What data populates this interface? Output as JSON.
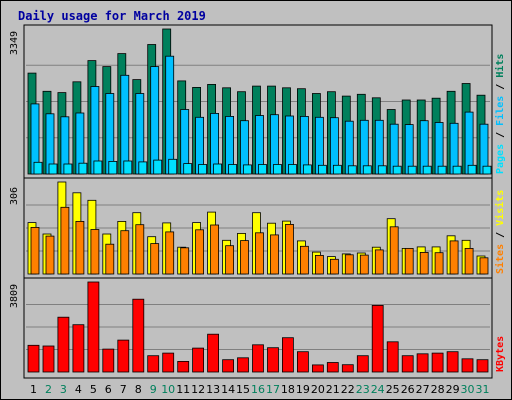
{
  "colors": {
    "hits": "#00805c",
    "files": "#00c0ff",
    "pages": "#00e0ff",
    "visits": "#ffff00",
    "sites": "#ff8000",
    "kbytes": "#ff0000",
    "weekday": "#000000",
    "weekend": "#00805c",
    "title": "#0000a0"
  },
  "chart_data": {
    "title": "Daily usage for March 2019",
    "type": "bar",
    "days": [
      "1",
      "2",
      "3",
      "4",
      "5",
      "6",
      "7",
      "8",
      "9",
      "10",
      "11",
      "12",
      "13",
      "14",
      "15",
      "16",
      "17",
      "18",
      "19",
      "20",
      "21",
      "22",
      "23",
      "24",
      "25",
      "26",
      "27",
      "28",
      "29",
      "30",
      "31"
    ],
    "weekend_days": [
      "2",
      "3",
      "9",
      "10",
      "16",
      "17",
      "23",
      "24",
      "30",
      "31"
    ],
    "panels": [
      {
        "name": "hits-files-pages",
        "ymax_label": "3349",
        "ymax": 3349,
        "legend": [
          "Pages",
          "Files",
          "Hits"
        ],
        "series": [
          {
            "name": "Hits",
            "color": "hits",
            "values": [
              2330,
              1910,
              1880,
              2130,
              2620,
              2480,
              2780,
              2180,
              2990,
              3349,
              2150,
              2000,
              2070,
              1990,
              1900,
              2030,
              2030,
              1990,
              1970,
              1860,
              1900,
              1800,
              1840,
              1760,
              1490,
              1710,
              1710,
              1750,
              1910,
              2090,
              1820
            ]
          },
          {
            "name": "Files",
            "color": "files",
            "values": [
              1620,
              1390,
              1320,
              1410,
              2020,
              1860,
              2280,
              1860,
              2480,
              2720,
              1490,
              1310,
              1400,
              1330,
              1230,
              1350,
              1370,
              1340,
              1330,
              1310,
              1300,
              1220,
              1240,
              1240,
              1150,
              1140,
              1230,
              1190,
              1170,
              1430,
              1150
            ]
          },
          {
            "name": "Pages",
            "color": "pages",
            "values": [
              270,
              230,
              230,
              250,
              300,
              290,
              300,
              280,
              320,
              340,
              240,
              220,
              230,
              220,
              210,
              220,
              220,
              220,
              210,
              200,
              200,
              190,
              190,
              190,
              180,
              180,
              180,
              180,
              180,
              200,
              180
            ]
          }
        ]
      },
      {
        "name": "visits-sites",
        "ymax_label": "306",
        "ymax": 306,
        "legend": [
          "Sites",
          "Visits"
        ],
        "series": [
          {
            "name": "Visits",
            "color": "visits",
            "values": [
              171,
              133,
              306,
              270,
              245,
              133,
              175,
              204,
              124,
              170,
              89,
              171,
              206,
              112,
              135,
              204,
              169,
              176,
              110,
              73,
              58,
              67,
              70,
              89,
              184,
              85,
              90,
              90,
              127,
              112,
              60
            ]
          },
          {
            "name": "Sites",
            "color": "sites",
            "values": [
              155,
              126,
              222,
              175,
              148,
              99,
              144,
              164,
              101,
              140,
              87,
              147,
              163,
              94,
              111,
              137,
              130,
              165,
              92,
              62,
              49,
              64,
              63,
              80,
              157,
              85,
              72,
              71,
              110,
              85,
              54
            ]
          }
        ]
      },
      {
        "name": "kbytes",
        "ymax_label": "3809",
        "ymax": 3809,
        "legend": [
          "KBytes"
        ],
        "series": [
          {
            "name": "KBytes",
            "color": "kbytes",
            "values": [
              1130,
              1100,
              2320,
              2000,
              3809,
              970,
              1350,
              3080,
              690,
              800,
              450,
              1010,
              1600,
              520,
              600,
              1150,
              1030,
              1450,
              860,
              300,
              400,
              310,
              690,
              2820,
              1280,
              690,
              770,
              800,
              860,
              560,
              520
            ]
          }
        ]
      }
    ]
  }
}
